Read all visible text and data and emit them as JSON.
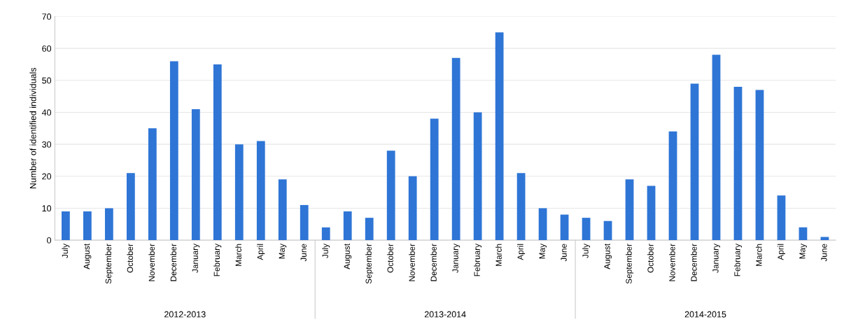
{
  "chart_data": {
    "type": "bar",
    "ylabel": "Number of identified individuals",
    "categories": [
      "July",
      "August",
      "September",
      "October",
      "November",
      "December",
      "January",
      "February",
      "March",
      "April",
      "May",
      "June",
      "July",
      "August",
      "September",
      "October",
      "November",
      "December",
      "January",
      "February",
      "March",
      "April",
      "May",
      "June",
      "July",
      "August",
      "September",
      "October",
      "November",
      "December",
      "January",
      "February",
      "March",
      "April",
      "May",
      "June"
    ],
    "values": [
      9,
      9,
      10,
      21,
      35,
      56,
      41,
      55,
      30,
      31,
      19,
      11,
      4,
      9,
      7,
      28,
      20,
      38,
      57,
      40,
      65,
      21,
      10,
      8,
      7,
      6,
      19,
      17,
      34,
      49,
      58,
      48,
      47,
      14,
      4,
      1
    ],
    "color": "#2e75d6",
    "ylim": [
      0,
      70
    ],
    "yticks": [
      0,
      10,
      20,
      30,
      40,
      50,
      60,
      70
    ],
    "grid": "y",
    "annotations": [
      "2012-2013",
      "2013-2014",
      "2014-2015"
    ]
  }
}
